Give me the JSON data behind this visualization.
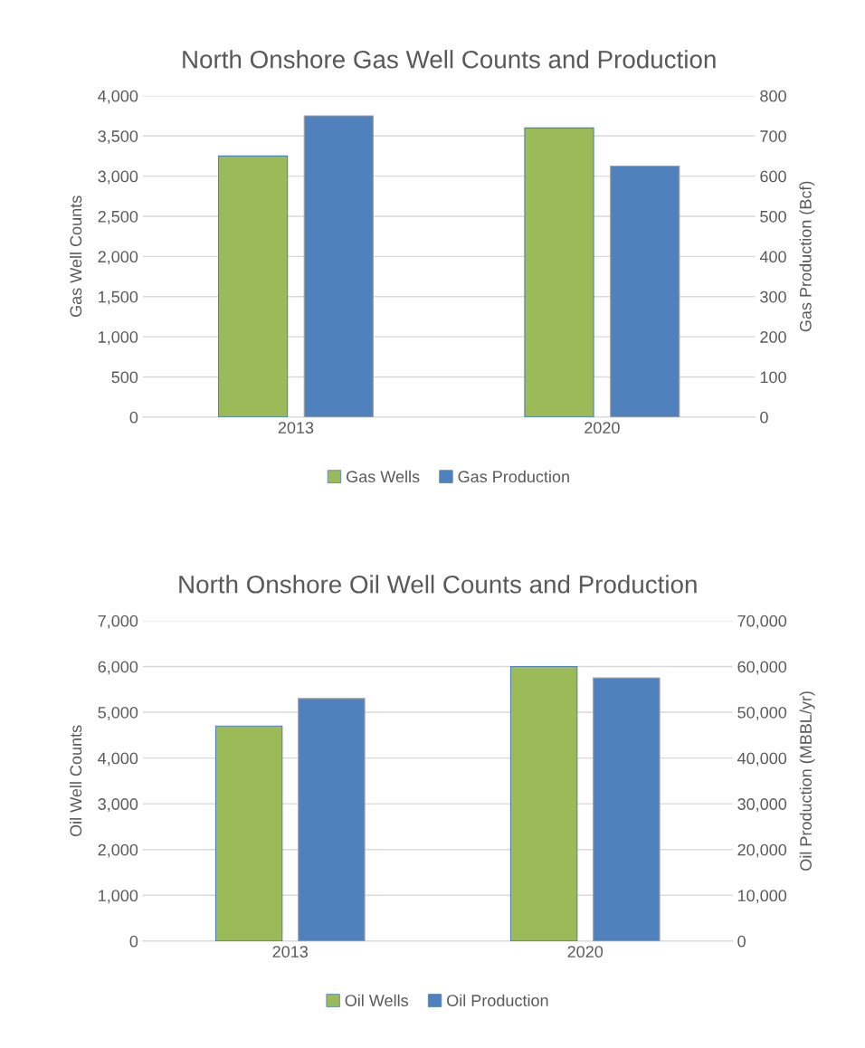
{
  "chart_data": [
    {
      "type": "bar",
      "title": "North Onshore Gas Well Counts and Production",
      "ylabel": "Gas Well Counts",
      "y2label": "Gas Production (Bcf)",
      "categories": [
        "2013",
        "2020"
      ],
      "series": [
        {
          "name": "Gas Wells",
          "color": "#9bbb59",
          "values": [
            3250,
            3600
          ]
        },
        {
          "name": "Gas Production",
          "color": "#4f81bd",
          "values": [
            750,
            625
          ],
          "axis": "y2"
        }
      ],
      "ylim": [
        0,
        4000
      ],
      "yticks": [
        0,
        {
          "value": 500,
          "label": "500"
        },
        {
          "value": 1000,
          "label": "1,000"
        },
        {
          "value": 1500,
          "label": "1,500"
        },
        {
          "value": 2000,
          "label": "2,000"
        },
        {
          "value": 2500,
          "label": "2,500"
        },
        {
          "value": 3000,
          "label": "3,000"
        },
        {
          "value": 3500,
          "label": "3,500"
        },
        {
          "value": 4000,
          "label": "4,000"
        }
      ],
      "y2lim": [
        0,
        800
      ],
      "y2ticks": [
        0,
        100,
        200,
        300,
        400,
        500,
        600,
        700,
        800
      ],
      "grid": "y",
      "legend": "bottom"
    },
    {
      "type": "bar",
      "title": "North Onshore Oil Well Counts and Production",
      "ylabel": "Oil Well Counts",
      "y2label": "Oil Production (MBBL/yr)",
      "categories": [
        "2013",
        "2020"
      ],
      "series": [
        {
          "name": "Oil Wells",
          "color": "#9bbb59",
          "values": [
            4700,
            6000
          ]
        },
        {
          "name": "Oil Production",
          "color": "#4f81bd",
          "values": [
            53000,
            57500
          ],
          "axis": "y2"
        }
      ],
      "ylim": [
        0,
        7000
      ],
      "yticks": [
        0,
        {
          "value": 1000,
          "label": "1,000"
        },
        {
          "value": 2000,
          "label": "2,000"
        },
        {
          "value": 3000,
          "label": "3,000"
        },
        {
          "value": 4000,
          "label": "4,000"
        },
        {
          "value": 5000,
          "label": "5,000"
        },
        {
          "value": 6000,
          "label": "6,000"
        },
        {
          "value": 7000,
          "label": "7,000"
        }
      ],
      "y2lim": [
        0,
        70000
      ],
      "y2ticks": [
        0,
        {
          "value": 10000,
          "label": "10,000"
        },
        {
          "value": 20000,
          "label": "20,000"
        },
        {
          "value": 30000,
          "label": "30,000"
        },
        {
          "value": 40000,
          "label": "40,000"
        },
        {
          "value": 50000,
          "label": "50,000"
        },
        {
          "value": 60000,
          "label": "60,000"
        },
        {
          "value": 70000,
          "label": "70,000"
        }
      ],
      "grid": "y",
      "legend": "bottom"
    }
  ]
}
